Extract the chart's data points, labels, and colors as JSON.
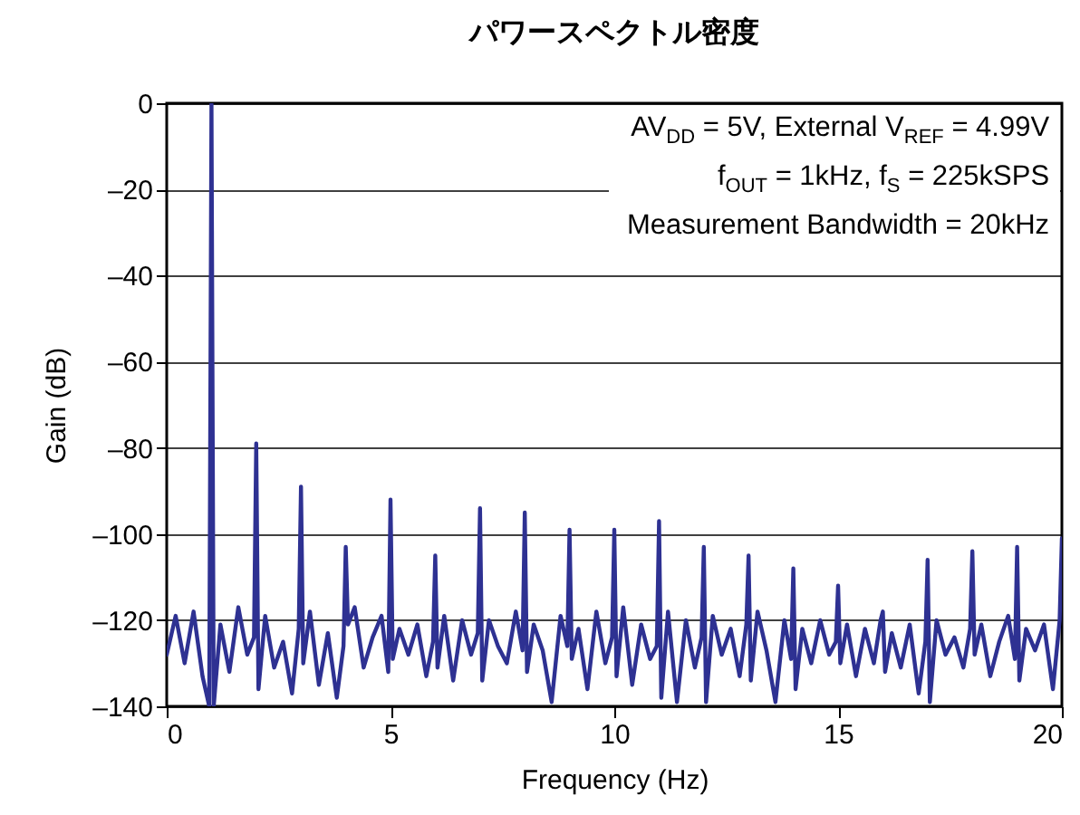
{
  "chart_data": {
    "type": "line",
    "title": "パワースペクトル密度",
    "xlabel": "Frequency (Hz)",
    "ylabel": "Gain (dB)",
    "annotations": [
      "AV$_{DD}$ = 5V, External V$_{REF}$ = 4.99V",
      "f$_{OUT}$ = 1kHz, f$_{S}$ = 225kSPS",
      "Measurement Bandwidth = 20kHz"
    ],
    "xlim": [
      0,
      20
    ],
    "xticks": [
      0,
      5,
      10,
      15,
      20
    ],
    "ylim": [
      -140,
      0
    ],
    "yticks": [
      0,
      {
        "value": -20,
        "label": "–20"
      },
      {
        "value": -40,
        "label": "–40"
      },
      {
        "value": -60,
        "label": "–60"
      },
      {
        "value": -80,
        "label": "–80"
      },
      {
        "value": -100,
        "label": "–100"
      },
      {
        "value": -120,
        "label": "–120"
      },
      {
        "value": -140,
        "label": "–140"
      }
    ],
    "grid": "y",
    "legend": false,
    "line_style": "solid",
    "marker": "none",
    "x": [
      0,
      0.2,
      0.4,
      0.6,
      0.8,
      0.95,
      1,
      1.05,
      1.2,
      1.4,
      1.6,
      1.8,
      1.95,
      2,
      2.05,
      2.2,
      2.4,
      2.6,
      2.8,
      2.95,
      3,
      3.05,
      3.2,
      3.4,
      3.6,
      3.8,
      3.95,
      4,
      4.05,
      4.2,
      4.4,
      4.6,
      4.8,
      4.95,
      5,
      5.05,
      5.2,
      5.4,
      5.6,
      5.8,
      5.95,
      6,
      6.05,
      6.2,
      6.4,
      6.6,
      6.8,
      6.95,
      7,
      7.05,
      7.2,
      7.4,
      7.6,
      7.8,
      7.95,
      8,
      8.05,
      8.2,
      8.4,
      8.6,
      8.8,
      8.95,
      9,
      9.05,
      9.2,
      9.4,
      9.6,
      9.8,
      9.95,
      10,
      10.05,
      10.2,
      10.4,
      10.6,
      10.8,
      10.95,
      11,
      11.05,
      11.2,
      11.4,
      11.6,
      11.8,
      11.95,
      12,
      12.05,
      12.2,
      12.4,
      12.6,
      12.8,
      12.95,
      13,
      13.05,
      13.2,
      13.4,
      13.6,
      13.8,
      13.95,
      14,
      14.05,
      14.2,
      14.4,
      14.6,
      14.8,
      14.95,
      15,
      15.05,
      15.2,
      15.4,
      15.6,
      15.8,
      15.95,
      16,
      16.05,
      16.2,
      16.4,
      16.6,
      16.8,
      16.95,
      17,
      17.05,
      17.2,
      17.4,
      17.6,
      17.8,
      17.95,
      18,
      18.05,
      18.2,
      18.4,
      18.6,
      18.8,
      18.95,
      19,
      19.05,
      19.2,
      19.4,
      19.6,
      19.8,
      19.95,
      20
    ],
    "series": [
      {
        "color": "#2e3192",
        "values": [
          -128,
          -119,
          -130,
          -118,
          -133,
          -140,
          0,
          -140,
          -121,
          -132,
          -117,
          -128,
          -124,
          -79,
          -136,
          -119,
          -131,
          -125,
          -137,
          -122,
          -89,
          -130,
          -118,
          -135,
          -123,
          -138,
          -126,
          -103,
          -121,
          -117,
          -131,
          -124,
          -119,
          -132,
          -92,
          -129,
          -122,
          -128,
          -121,
          -133,
          -125,
          -105,
          -131,
          -119,
          -134,
          -120,
          -128,
          -123,
          -94,
          -134,
          -120,
          -126,
          -130,
          -118,
          -127,
          -95,
          -132,
          -121,
          -127,
          -139,
          -119,
          -126,
          -99,
          -129,
          -122,
          -136,
          -118,
          -130,
          -124,
          -99,
          -133,
          -117,
          -135,
          -121,
          -129,
          -126,
          -97,
          -138,
          -118,
          -139,
          -120,
          -131,
          -124,
          -103,
          -139,
          -119,
          -128,
          -122,
          -133,
          -121,
          -105,
          -134,
          -118,
          -127,
          -139,
          -120,
          -129,
          -108,
          -136,
          -122,
          -130,
          -120,
          -128,
          -125,
          -112,
          -130,
          -121,
          -133,
          -122,
          -130,
          -120,
          -118,
          -132,
          -123,
          -131,
          -121,
          -137,
          -125,
          -106,
          -139,
          -120,
          -128,
          -124,
          -131,
          -122,
          -104,
          -128,
          -121,
          -133,
          -125,
          -119,
          -129,
          -103,
          -134,
          -122,
          -127,
          -121,
          -136,
          -120,
          -101
        ]
      }
    ]
  }
}
